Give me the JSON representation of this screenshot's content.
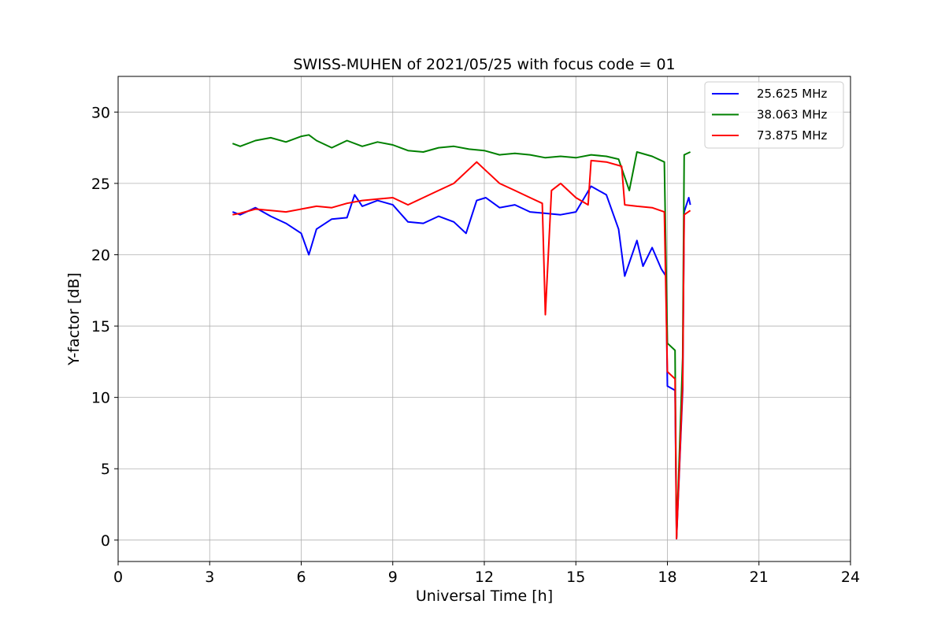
{
  "chart_data": {
    "type": "line",
    "title": "SWISS-MUHEN of 2021/05/25 with focus code = 01",
    "xlabel": "Universal Time [h]",
    "ylabel": "Y-factor [dB]",
    "xlim": [
      0,
      24
    ],
    "ylim": [
      -1.5,
      32.5
    ],
    "xticks": [
      0,
      3,
      6,
      9,
      12,
      15,
      18,
      21,
      24
    ],
    "yticks": [
      0,
      5,
      10,
      15,
      20,
      25,
      30
    ],
    "grid": true,
    "legend_position": "upper-right",
    "series": [
      {
        "name": "25.625 MHz",
        "color": "#0000ff",
        "x": [
          3.75,
          4.0,
          4.5,
          5.0,
          5.5,
          6.0,
          6.25,
          6.5,
          7.0,
          7.5,
          7.75,
          8.0,
          8.5,
          9.0,
          9.5,
          10.0,
          10.5,
          11.0,
          11.4,
          11.75,
          12.05,
          12.5,
          13.0,
          13.5,
          14.0,
          14.5,
          15.0,
          15.5,
          16.0,
          16.4,
          16.6,
          17.0,
          17.2,
          17.5,
          17.8,
          17.95,
          18.0,
          18.25,
          18.3,
          18.5,
          18.55,
          18.7,
          18.75
        ],
        "y": [
          23.0,
          22.8,
          23.3,
          22.7,
          22.2,
          21.5,
          20.0,
          21.8,
          22.5,
          22.6,
          24.2,
          23.4,
          23.8,
          23.5,
          22.3,
          22.2,
          22.7,
          22.3,
          21.5,
          23.8,
          24.0,
          23.3,
          23.5,
          23.0,
          22.9,
          22.8,
          23.0,
          24.8,
          24.2,
          21.8,
          18.5,
          21.0,
          19.2,
          20.5,
          19.0,
          18.5,
          10.8,
          10.5,
          0.1,
          10.5,
          23.0,
          24.0,
          23.5
        ]
      },
      {
        "name": "38.063 MHz",
        "color": "#008000",
        "x": [
          3.75,
          4.0,
          4.5,
          5.0,
          5.5,
          6.0,
          6.25,
          6.5,
          7.0,
          7.5,
          8.0,
          8.5,
          9.0,
          9.5,
          10.0,
          10.5,
          11.0,
          11.5,
          12.0,
          12.5,
          13.0,
          13.5,
          14.0,
          14.5,
          15.0,
          15.5,
          16.0,
          16.4,
          16.75,
          17.0,
          17.5,
          17.9,
          18.0,
          18.25,
          18.3,
          18.5,
          18.55,
          18.75
        ],
        "y": [
          27.8,
          27.6,
          28.0,
          28.2,
          27.9,
          28.3,
          28.4,
          28.0,
          27.5,
          28.0,
          27.6,
          27.9,
          27.7,
          27.3,
          27.2,
          27.5,
          27.6,
          27.4,
          27.3,
          27.0,
          27.1,
          27.0,
          26.8,
          26.9,
          26.8,
          27.0,
          26.9,
          26.7,
          24.5,
          27.2,
          26.9,
          26.5,
          13.8,
          13.3,
          0.2,
          12.8,
          27.0,
          27.2
        ]
      },
      {
        "name": "73.875 MHz",
        "color": "#ff0000",
        "x": [
          3.75,
          4.0,
          4.5,
          5.0,
          5.5,
          6.0,
          6.5,
          7.0,
          7.5,
          8.0,
          8.5,
          9.0,
          9.5,
          10.0,
          10.5,
          11.0,
          11.5,
          11.75,
          12.0,
          12.25,
          12.5,
          13.0,
          13.5,
          13.9,
          14.0,
          14.2,
          14.5,
          15.0,
          15.4,
          15.5,
          16.0,
          16.5,
          16.6,
          17.0,
          17.5,
          17.9,
          18.0,
          18.25,
          18.3,
          18.5,
          18.55,
          18.75
        ],
        "y": [
          22.8,
          22.9,
          23.2,
          23.1,
          23.0,
          23.2,
          23.4,
          23.3,
          23.6,
          23.8,
          23.9,
          24.0,
          23.5,
          24.0,
          24.5,
          25.0,
          26.0,
          26.5,
          26.0,
          25.5,
          25.0,
          24.5,
          24.0,
          23.6,
          15.8,
          24.5,
          25.0,
          24.0,
          23.5,
          26.6,
          26.5,
          26.2,
          23.5,
          23.4,
          23.3,
          23.0,
          11.8,
          11.3,
          0.1,
          10.9,
          22.8,
          23.1
        ]
      }
    ]
  }
}
